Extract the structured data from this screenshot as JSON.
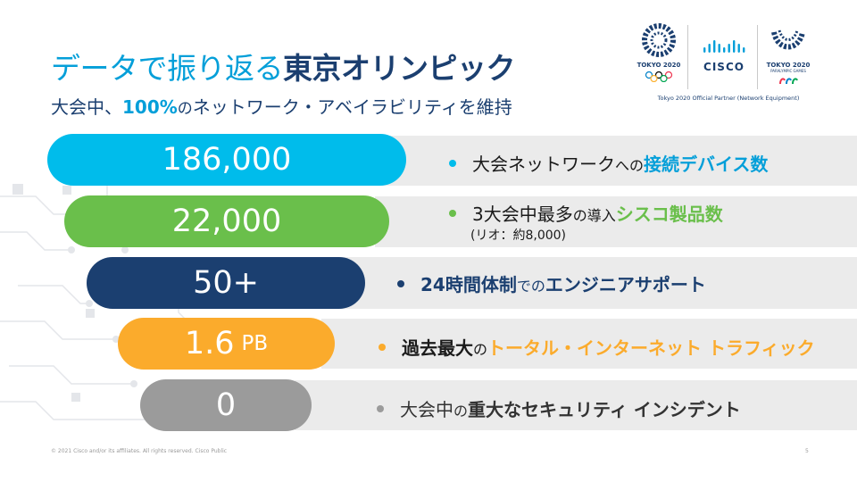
{
  "title": {
    "part1": "データで振り返る",
    "part2": "東京オリンピック"
  },
  "subtitle": {
    "part1": "大会中、",
    "percent": "100%",
    "part2": "の",
    "part3": "ネットワーク・アベイラビリティを維持"
  },
  "logos": {
    "tokyo": "TOKYO 2020",
    "cisco": "CISCO",
    "paralympic": "TOKYO 2020",
    "paralympic_sub": "PARALYMPIC GAMES",
    "partner": "Tokyo 2020 Official Partner (Network Equipment)"
  },
  "stats": [
    {
      "value": "186,000",
      "unit": "",
      "color": "#00bceb",
      "label": {
        "a": "大会ネットワーク",
        "a_small": "への",
        "b": "接続デバイス数"
      }
    },
    {
      "value": "22,000",
      "unit": "",
      "color": "#6abf4b",
      "label": {
        "a": "3大会中最多",
        "a_small": "の導入",
        "b": "シスコ製品数"
      },
      "note": "(リオ：約8,000)"
    },
    {
      "value": "50+",
      "unit": "",
      "color": "#1b3f70",
      "label": {
        "a": "24時間体制",
        "a_small": "での",
        "b": "エンジニアサポート"
      }
    },
    {
      "value": "1.6",
      "unit": "PB",
      "color": "#fbab2c",
      "label": {
        "a": "過去最大",
        "a_small": "の",
        "b": "トータル・インターネット トラフィック"
      }
    },
    {
      "value": "0",
      "unit": "",
      "color": "#9b9b9b",
      "label": {
        "a": "大会中",
        "a_small": "の",
        "b": "重大なセキュリティ インシデント"
      }
    }
  ],
  "footer": "© 2021  Cisco  and/or  its affiliates.  All  rights  reserved.   Cisco  Public",
  "page_number": "5"
}
